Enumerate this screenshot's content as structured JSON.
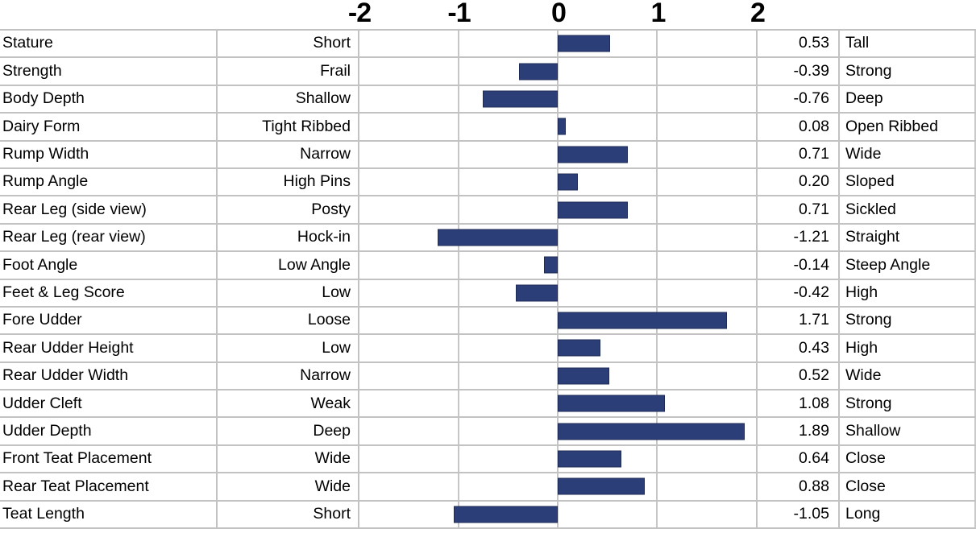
{
  "chart_data": {
    "type": "bar",
    "orientation": "horizontal",
    "title": "",
    "xlim": [
      -2,
      2
    ],
    "axis_ticks": [
      "-2",
      "-1",
      "0",
      "1",
      "2"
    ],
    "grid": true,
    "bar_color": "#2c3e78",
    "gridline_color": "#c6c6c6",
    "rows": [
      {
        "trait": "Stature",
        "low": "Short",
        "value": 0.53,
        "value_label": "0.53",
        "high": "Tall"
      },
      {
        "trait": "Strength",
        "low": "Frail",
        "value": -0.39,
        "value_label": "-0.39",
        "high": "Strong"
      },
      {
        "trait": "Body Depth",
        "low": "Shallow",
        "value": -0.76,
        "value_label": "-0.76",
        "high": "Deep"
      },
      {
        "trait": "Dairy Form",
        "low": "Tight Ribbed",
        "value": 0.08,
        "value_label": "0.08",
        "high": "Open Ribbed"
      },
      {
        "trait": "Rump Width",
        "low": "Narrow",
        "value": 0.71,
        "value_label": "0.71",
        "high": "Wide"
      },
      {
        "trait": "Rump Angle",
        "low": "High Pins",
        "value": 0.2,
        "value_label": "0.20",
        "high": "Sloped"
      },
      {
        "trait": "Rear Leg (side view)",
        "low": "Posty",
        "value": 0.71,
        "value_label": "0.71",
        "high": "Sickled"
      },
      {
        "trait": "Rear Leg (rear view)",
        "low": "Hock-in",
        "value": -1.21,
        "value_label": "-1.21",
        "high": "Straight"
      },
      {
        "trait": "Foot Angle",
        "low": "Low Angle",
        "value": -0.14,
        "value_label": "-0.14",
        "high": "Steep Angle"
      },
      {
        "trait": "Feet & Leg Score",
        "low": "Low",
        "value": -0.42,
        "value_label": "-0.42",
        "high": "High"
      },
      {
        "trait": "Fore Udder",
        "low": "Loose",
        "value": 1.71,
        "value_label": "1.71",
        "high": "Strong"
      },
      {
        "trait": "Rear Udder Height",
        "low": "Low",
        "value": 0.43,
        "value_label": "0.43",
        "high": "High"
      },
      {
        "trait": "Rear Udder Width",
        "low": "Narrow",
        "value": 0.52,
        "value_label": "0.52",
        "high": "Wide"
      },
      {
        "trait": "Udder Cleft",
        "low": "Weak",
        "value": 1.08,
        "value_label": "1.08",
        "high": "Strong"
      },
      {
        "trait": "Udder Depth",
        "low": "Deep",
        "value": 1.89,
        "value_label": "1.89",
        "high": "Shallow"
      },
      {
        "trait": "Front Teat Placement",
        "low": "Wide",
        "value": 0.64,
        "value_label": "0.64",
        "high": "Close"
      },
      {
        "trait": "Rear Teat Placement",
        "low": "Wide",
        "value": 0.88,
        "value_label": "0.88",
        "high": "Close"
      },
      {
        "trait": "Teat Length",
        "low": "Short",
        "value": -1.05,
        "value_label": "-1.05",
        "high": "Long"
      }
    ]
  }
}
